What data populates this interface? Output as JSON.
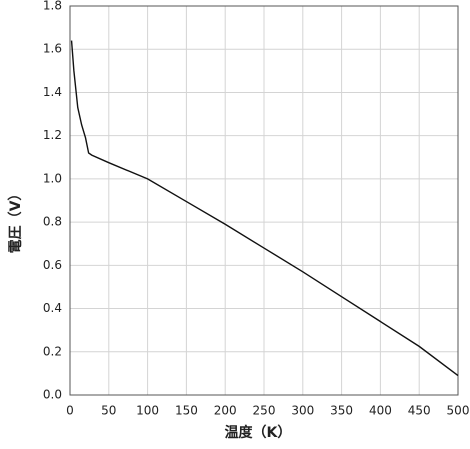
{
  "chart_data": {
    "type": "line",
    "xlabel": "温度（K）",
    "ylabel": "電圧（V）",
    "x": [
      2,
      5,
      10,
      15,
      20,
      24,
      28,
      50,
      100,
      150,
      200,
      250,
      300,
      350,
      400,
      450,
      500
    ],
    "values": [
      1.64,
      1.5,
      1.33,
      1.25,
      1.19,
      1.12,
      1.11,
      1.075,
      1.0,
      0.895,
      0.79,
      0.68,
      0.57,
      0.455,
      0.34,
      0.225,
      0.09
    ],
    "color": "#111111",
    "xlim": [
      0,
      500
    ],
    "xticks": [
      0,
      50,
      100,
      150,
      200,
      250,
      300,
      350,
      400,
      450,
      500
    ],
    "ylim": [
      0,
      1.8
    ],
    "yticks": [
      {
        "value": 0,
        "label": "0.0"
      },
      0.2,
      0.4,
      0.6,
      0.8,
      {
        "value": 1,
        "label": "1.0"
      },
      1.2,
      1.4,
      1.6,
      1.8
    ],
    "grid": true
  }
}
